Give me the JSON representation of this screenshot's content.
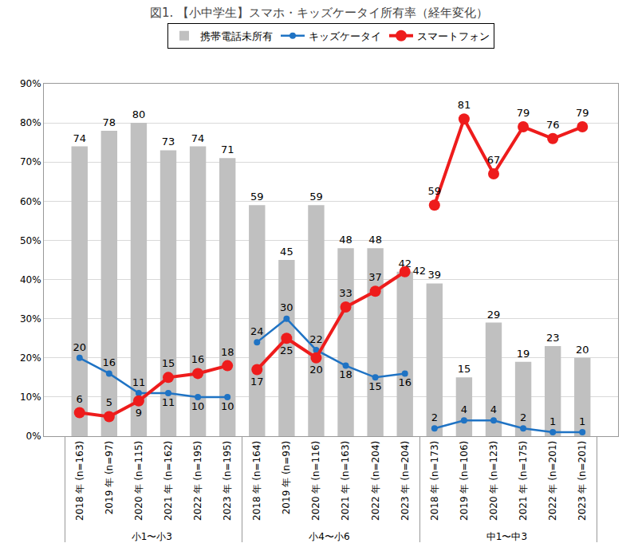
{
  "chart_data": {
    "type": "bar",
    "title": "図1. 【小中学生】スマホ・キッズケータイ所有率（経年変化）",
    "category_groups": [
      "小1〜小3",
      "小1〜小3",
      "小1〜小3",
      "小1〜小3",
      "小1〜小3",
      "小1〜小3",
      "小4〜小6",
      "小4〜小6",
      "小4〜小6",
      "小4〜小6",
      "小4〜小6",
      "小4〜小6",
      "中1〜中3",
      "中1〜中3",
      "中1〜中3",
      "中1〜中3",
      "中1〜中3",
      "中1〜中3"
    ],
    "categories": [
      "2018 年 (n=163)",
      "2019 年 (n=97)",
      "2020 年 (n=115)",
      "2021 年 (n=162)",
      "2022 年 (n=195)",
      "2023 年 (n=195)",
      "2018 年 (n=164)",
      "2019 年 (n=93)",
      "2020 年 (n=116)",
      "2021 年 (n=163)",
      "2022 年 (n=204)",
      "2023 年 (n=204)",
      "2018 年 (n=173)",
      "2019 年 (n=106)",
      "2020 年 (n=123)",
      "2021 年 (n=175)",
      "2022 年 (n=201)",
      "2023 年 (n=201)"
    ],
    "series": [
      {
        "name": "携帯電話未所有",
        "type": "bar",
        "color": "#c0c0c0",
        "values": [
          74,
          78,
          80,
          73,
          74,
          71,
          59,
          45,
          59,
          48,
          48,
          42,
          39,
          15,
          29,
          19,
          23,
          20
        ]
      },
      {
        "name": "キッズケータイ",
        "type": "line",
        "color": "#1f73c4",
        "marker": "circle",
        "values": [
          20,
          16,
          11,
          11,
          10,
          10,
          24,
          30,
          22,
          18,
          15,
          16,
          2,
          4,
          4,
          2,
          1,
          1
        ]
      },
      {
        "name": "スマートフォン",
        "type": "line",
        "color": "#ee1c1c",
        "marker": "circle",
        "values": [
          6,
          5,
          9,
          15,
          16,
          18,
          17,
          25,
          20,
          33,
          37,
          42,
          59,
          81,
          67,
          79,
          76,
          79
        ]
      }
    ],
    "ylim": [
      0,
      90
    ],
    "yticks": [
      {
        "value": 0,
        "label": "0%"
      },
      {
        "value": 10,
        "label": "10%"
      },
      {
        "value": 20,
        "label": "20%"
      },
      {
        "value": 30,
        "label": "30%"
      },
      {
        "value": 40,
        "label": "40%"
      },
      {
        "value": 50,
        "label": "50%"
      },
      {
        "value": 60,
        "label": "60%"
      },
      {
        "value": 70,
        "label": "70%"
      },
      {
        "value": 80,
        "label": "80%"
      },
      {
        "value": 90,
        "label": "90%"
      }
    ],
    "grid": true,
    "legend": "top",
    "data_labels": true
  }
}
